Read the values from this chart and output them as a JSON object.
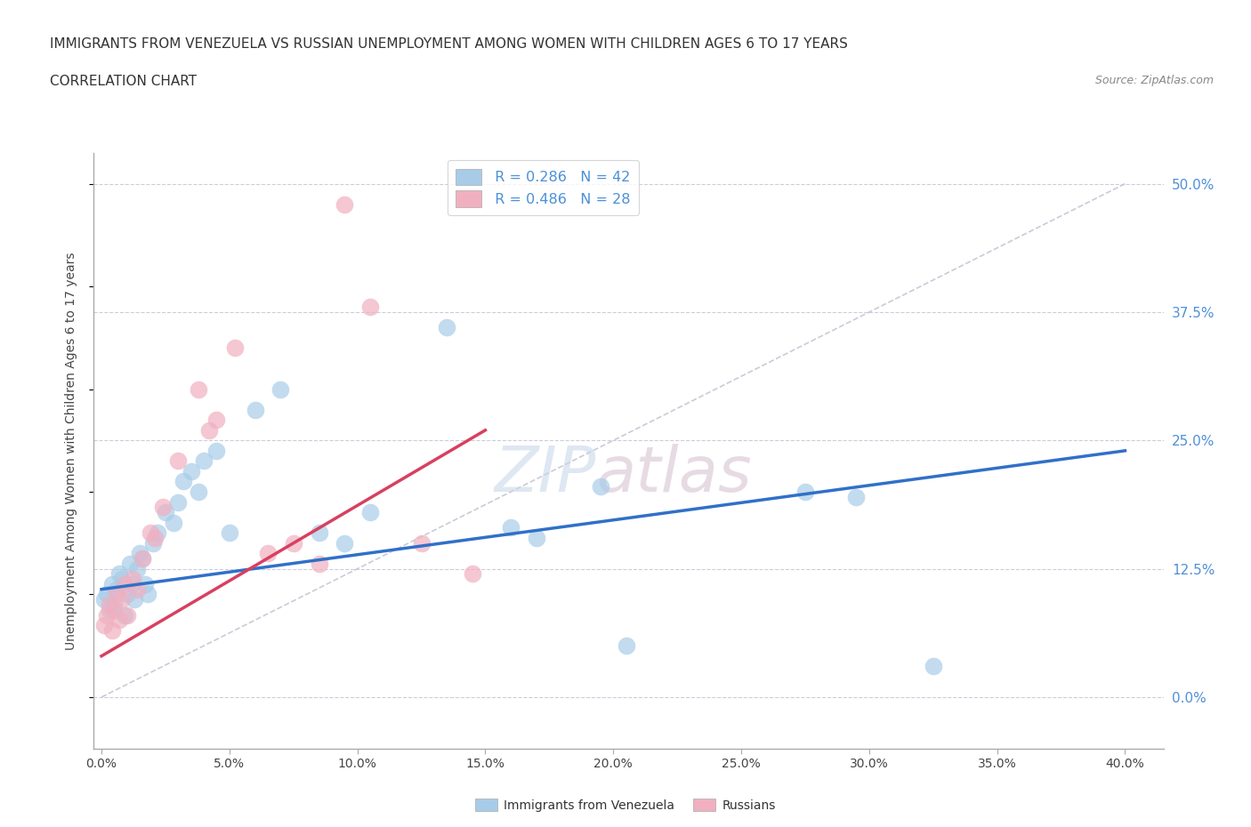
{
  "title": "IMMIGRANTS FROM VENEZUELA VS RUSSIAN UNEMPLOYMENT AMONG WOMEN WITH CHILDREN AGES 6 TO 17 YEARS",
  "subtitle": "CORRELATION CHART",
  "source": "Source: ZipAtlas.com",
  "xlabel_ticks": [
    0.0,
    5.0,
    10.0,
    15.0,
    20.0,
    25.0,
    30.0,
    35.0,
    40.0
  ],
  "ylabel_ticks": [
    0.0,
    12.5,
    25.0,
    37.5,
    50.0
  ],
  "xlim": [
    -0.3,
    41.5
  ],
  "ylim": [
    -5.0,
    53.0
  ],
  "watermark_zip": "ZIP",
  "watermark_atlas": "atlas",
  "legend_blue_r": "R = 0.286",
  "legend_blue_n": "N = 42",
  "legend_pink_r": "R = 0.486",
  "legend_pink_n": "N = 28",
  "blue_color": "#a8cce8",
  "pink_color": "#f0b0c0",
  "blue_line_color": "#3070c8",
  "pink_line_color": "#d84060",
  "ref_line_color": "#c8ccd8",
  "ylabel": "Unemployment Among Women with Children Ages 6 to 17 years",
  "blue_scatter_x": [
    0.1,
    0.2,
    0.3,
    0.4,
    0.5,
    0.6,
    0.7,
    0.8,
    0.9,
    1.0,
    1.1,
    1.2,
    1.3,
    1.4,
    1.5,
    1.6,
    1.7,
    1.8,
    2.0,
    2.2,
    2.5,
    2.8,
    3.0,
    3.2,
    3.5,
    3.8,
    4.0,
    4.5,
    5.0,
    6.0,
    7.0,
    8.5,
    9.5,
    10.5,
    13.5,
    16.0,
    19.5,
    27.5,
    29.5,
    32.5,
    17.0,
    20.5
  ],
  "blue_scatter_y": [
    9.5,
    10.0,
    8.5,
    11.0,
    9.0,
    10.5,
    12.0,
    11.5,
    8.0,
    10.0,
    13.0,
    11.0,
    9.5,
    12.5,
    14.0,
    13.5,
    11.0,
    10.0,
    15.0,
    16.0,
    18.0,
    17.0,
    19.0,
    21.0,
    22.0,
    20.0,
    23.0,
    24.0,
    16.0,
    28.0,
    30.0,
    16.0,
    15.0,
    18.0,
    36.0,
    16.5,
    20.5,
    20.0,
    19.5,
    3.0,
    15.5,
    5.0
  ],
  "pink_scatter_x": [
    0.1,
    0.2,
    0.3,
    0.4,
    0.5,
    0.6,
    0.7,
    0.8,
    0.9,
    1.0,
    1.2,
    1.4,
    1.6,
    1.9,
    2.1,
    2.4,
    3.0,
    3.8,
    4.2,
    5.2,
    6.5,
    7.5,
    8.5,
    9.5,
    10.5,
    12.5,
    14.5,
    4.5
  ],
  "pink_scatter_y": [
    7.0,
    8.0,
    9.0,
    6.5,
    8.5,
    10.0,
    7.5,
    9.5,
    11.0,
    8.0,
    11.5,
    10.5,
    13.5,
    16.0,
    15.5,
    18.5,
    23.0,
    30.0,
    26.0,
    34.0,
    14.0,
    15.0,
    13.0,
    48.0,
    38.0,
    15.0,
    12.0,
    27.0
  ],
  "blue_trend_x": [
    0.0,
    40.0
  ],
  "blue_trend_y": [
    10.5,
    24.0
  ],
  "pink_trend_x": [
    0.0,
    15.0
  ],
  "pink_trend_y": [
    4.0,
    26.0
  ],
  "ref_line_x": [
    0.0,
    40.0
  ],
  "ref_line_y": [
    0.0,
    50.0
  ]
}
